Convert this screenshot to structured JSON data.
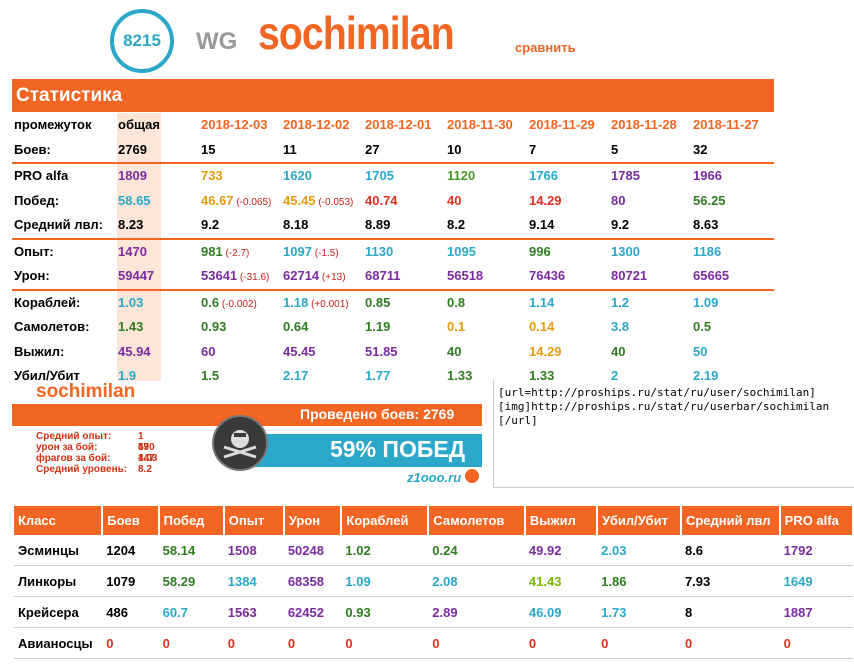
{
  "header": {
    "rating": "8215",
    "clan": "WG",
    "nickname": "sochimilan",
    "compare": "сравнить"
  },
  "stats": {
    "title": "Статистика",
    "columns": [
      "общая",
      "2018-12-03",
      "2018-12-02",
      "2018-12-01",
      "2018-11-30",
      "2018-11-29",
      "2018-11-28",
      "2018-11-27"
    ],
    "period_label": "промежуток",
    "rows": [
      {
        "label": "Боев:",
        "cells": [
          [
            "2769",
            "black"
          ],
          [
            "15",
            "black"
          ],
          [
            "11",
            "black"
          ],
          [
            "27",
            "black"
          ],
          [
            "10",
            "black"
          ],
          [
            "7",
            "black"
          ],
          [
            "5",
            "black"
          ],
          [
            "32",
            "black"
          ]
        ]
      },
      {
        "sep": true
      },
      {
        "label": "PRO alfa",
        "cells": [
          [
            "1809",
            "purple"
          ],
          [
            "733",
            "orange"
          ],
          [
            "1620",
            "blue"
          ],
          [
            "1705",
            "blue"
          ],
          [
            "1120",
            "green"
          ],
          [
            "1766",
            "blue"
          ],
          [
            "1785",
            "purple"
          ],
          [
            "1966",
            "purple"
          ]
        ]
      },
      {
        "label": "Побед:",
        "cells": [
          [
            "58.65",
            "blue"
          ],
          [
            "46.67",
            "orange",
            "(-0.065)"
          ],
          [
            "45.45",
            "orange",
            "(-0.053)"
          ],
          [
            "40.74",
            "red"
          ],
          [
            "40",
            "red"
          ],
          [
            "14.29",
            "red"
          ],
          [
            "80",
            "purple"
          ],
          [
            "56.25",
            "darkgreen"
          ]
        ]
      },
      {
        "label": "Средний лвл:",
        "cells": [
          [
            "8.23",
            "black"
          ],
          [
            "9.2",
            "black"
          ],
          [
            "8.18",
            "black"
          ],
          [
            "8.89",
            "black"
          ],
          [
            "8.2",
            "black"
          ],
          [
            "9.14",
            "black"
          ],
          [
            "9.2",
            "black"
          ],
          [
            "8.63",
            "black"
          ]
        ]
      },
      {
        "sep": true
      },
      {
        "label": "Опыт:",
        "cells": [
          [
            "1470",
            "purple"
          ],
          [
            "981",
            "darkgreen",
            "(-2.7)"
          ],
          [
            "1097",
            "blue",
            "(-1.5)"
          ],
          [
            "1130",
            "blue"
          ],
          [
            "1095",
            "blue"
          ],
          [
            "996",
            "darkgreen"
          ],
          [
            "1300",
            "blue"
          ],
          [
            "1186",
            "blue"
          ]
        ]
      },
      {
        "label": "Урон:",
        "cells": [
          [
            "59447",
            "purple"
          ],
          [
            "53641",
            "purple",
            "(-31.6)"
          ],
          [
            "62714",
            "purple",
            "(+13)"
          ],
          [
            "68711",
            "purple"
          ],
          [
            "56518",
            "purple"
          ],
          [
            "76436",
            "purple"
          ],
          [
            "80721",
            "purple"
          ],
          [
            "65665",
            "purple"
          ]
        ]
      },
      {
        "sep": true
      },
      {
        "label": "Кораблей:",
        "cells": [
          [
            "1.03",
            "blue"
          ],
          [
            "0.6",
            "darkgreen",
            "(-0.002)"
          ],
          [
            "1.18",
            "blue",
            "(+0.001)"
          ],
          [
            "0.85",
            "darkgreen"
          ],
          [
            "0.8",
            "darkgreen"
          ],
          [
            "1.14",
            "blue"
          ],
          [
            "1.2",
            "blue"
          ],
          [
            "1.09",
            "blue"
          ]
        ]
      },
      {
        "label": "Самолетов:",
        "cells": [
          [
            "1.43",
            "darkgreen"
          ],
          [
            "0.93",
            "darkgreen"
          ],
          [
            "0.64",
            "darkgreen"
          ],
          [
            "1.19",
            "darkgreen"
          ],
          [
            "0.1",
            "orange"
          ],
          [
            "0.14",
            "orange"
          ],
          [
            "3.8",
            "blue"
          ],
          [
            "0.5",
            "darkgreen"
          ]
        ]
      },
      {
        "label": "Выжил:",
        "cells": [
          [
            "45.94",
            "purple"
          ],
          [
            "60",
            "purple"
          ],
          [
            "45.45",
            "purple"
          ],
          [
            "51.85",
            "purple"
          ],
          [
            "40",
            "darkgreen"
          ],
          [
            "14.29",
            "orange"
          ],
          [
            "40",
            "darkgreen"
          ],
          [
            "50",
            "blue"
          ]
        ]
      },
      {
        "label": "Убил/Убит",
        "cells": [
          [
            "1.9",
            "blue"
          ],
          [
            "1.5",
            "darkgreen"
          ],
          [
            "2.17",
            "blue"
          ],
          [
            "1.77",
            "blue"
          ],
          [
            "1.33",
            "darkgreen"
          ],
          [
            "1.33",
            "darkgreen"
          ],
          [
            "2",
            "blue"
          ],
          [
            "2.19",
            "blue"
          ]
        ]
      }
    ]
  },
  "userbar": {
    "name": "sochimilan",
    "battles": "Проведено боев: 2769",
    "win": "59% ПОБЕД",
    "site": "z1ooo.ru",
    "stats": [
      [
        "Средний опыт:",
        "1 470"
      ],
      [
        "урон за бой:",
        "59 447"
      ],
      [
        "фрагов за бой:",
        "1.03"
      ],
      [
        "Средний уровень:",
        "8.2"
      ]
    ]
  },
  "bbcode": "[url=http://proships.ru/stat/ru/user/sochimilan]\n[img]http://proships.ru/stat/ru/userbar/sochimilan\n[/url]",
  "class_table": {
    "headers": [
      "Класс",
      "Боев",
      "Побед",
      "Опыт",
      "Урон",
      "Кораблей",
      "Самолетов",
      "Выжил",
      "Убил/Убит",
      "Средний лвл",
      "PRO alfa"
    ],
    "rows": [
      [
        [
          "Эсминцы",
          "black"
        ],
        [
          "1204",
          "black"
        ],
        [
          "58.14",
          "darkgreen"
        ],
        [
          "1508",
          "purple"
        ],
        [
          "50248",
          "purple"
        ],
        [
          "1.02",
          "darkgreen"
        ],
        [
          "0.24",
          "darkgreen"
        ],
        [
          "49.92",
          "purple"
        ],
        [
          "2.03",
          "blue"
        ],
        [
          "8.6",
          "black"
        ],
        [
          "1792",
          "purple"
        ]
      ],
      [
        [
          "Линкоры",
          "black"
        ],
        [
          "1079",
          "black"
        ],
        [
          "58.29",
          "darkgreen"
        ],
        [
          "1384",
          "blue"
        ],
        [
          "68358",
          "purple"
        ],
        [
          "1.09",
          "blue"
        ],
        [
          "2.08",
          "blue"
        ],
        [
          "41.43",
          "lgreen"
        ],
        [
          "1.86",
          "darkgreen"
        ],
        [
          "7.93",
          "black"
        ],
        [
          "1649",
          "blue"
        ]
      ],
      [
        [
          "Крейсера",
          "black"
        ],
        [
          "486",
          "black"
        ],
        [
          "60.7",
          "blue"
        ],
        [
          "1563",
          "purple"
        ],
        [
          "62452",
          "purple"
        ],
        [
          "0.93",
          "darkgreen"
        ],
        [
          "2.89",
          "purple"
        ],
        [
          "46.09",
          "blue"
        ],
        [
          "1.73",
          "blue"
        ],
        [
          "8",
          "black"
        ],
        [
          "1887",
          "purple"
        ]
      ],
      [
        [
          "Авианосцы",
          "black"
        ],
        [
          "0",
          "red"
        ],
        [
          "0",
          "red"
        ],
        [
          "0",
          "red"
        ],
        [
          "0",
          "red"
        ],
        [
          "0",
          "red"
        ],
        [
          "0",
          "red"
        ],
        [
          "0",
          "red"
        ],
        [
          "0",
          "red"
        ],
        [
          "0",
          "red"
        ],
        [
          "0",
          "red"
        ]
      ]
    ]
  },
  "colors": {
    "accent": "#f26522",
    "blue": "#2aa7c9"
  }
}
